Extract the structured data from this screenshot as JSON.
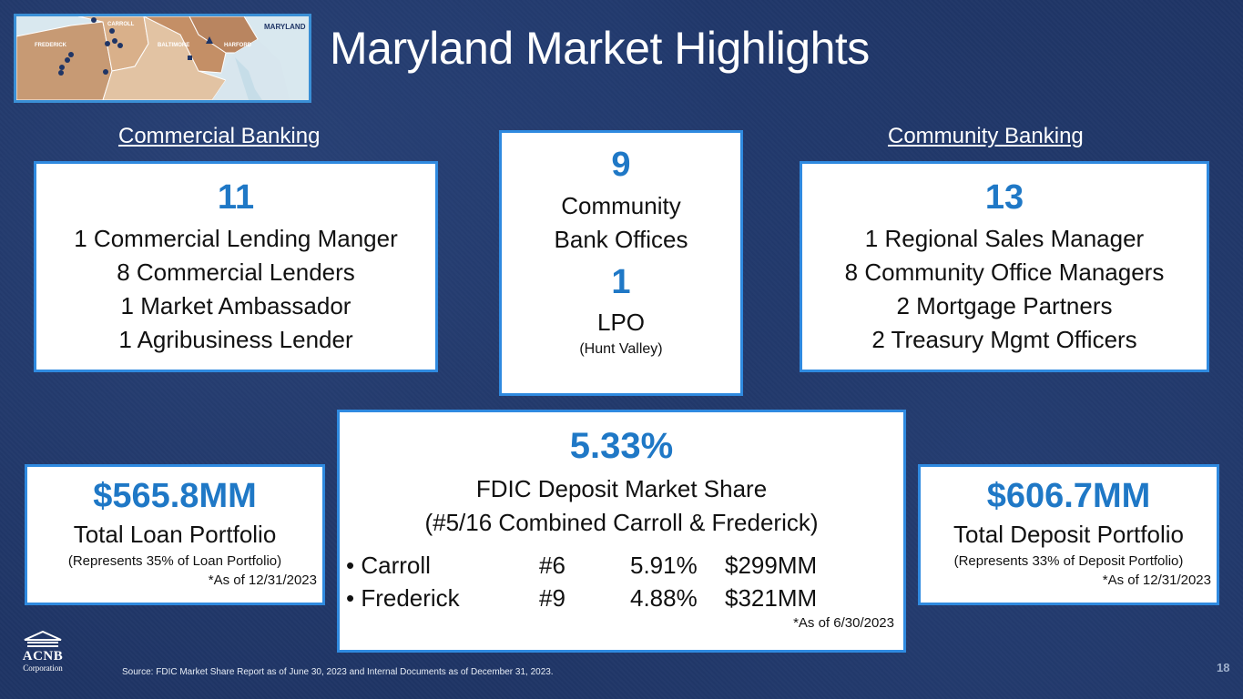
{
  "title": "Maryland Market Highlights",
  "map": {
    "labels": {
      "state": "MARYLAND",
      "carroll": "CARROLL",
      "frederick": "FREDERICK",
      "baltimore": "BALTIMORE",
      "harford": "HARFORD"
    }
  },
  "commercial": {
    "heading": "Commercial Banking",
    "count": "11",
    "lines": [
      "1 Commercial Lending Manger",
      "8 Commercial Lenders",
      "1 Market Ambassador",
      "1 Agribusiness Lender"
    ]
  },
  "offices": {
    "count1": "9",
    "label1a": "Community",
    "label1b": "Bank Offices",
    "count2": "1",
    "label2": "LPO",
    "sub2": "(Hunt Valley)"
  },
  "community": {
    "heading": "Community Banking",
    "count": "13",
    "lines": [
      "1 Regional Sales Manager",
      "8 Community Office Managers",
      "2 Mortgage Partners",
      "2 Treasury Mgmt Officers"
    ]
  },
  "loan": {
    "amount": "$565.8MM",
    "label": "Total Loan Portfolio",
    "note": "(Represents 35% of Loan Portfolio)",
    "asof": "*As of 12/31/2023"
  },
  "deposit_share": {
    "pct": "5.33%",
    "label": "FDIC Deposit Market Share",
    "sub": "(#5/16 Combined Carroll & Frederick)",
    "rows": [
      {
        "county": "• Carroll",
        "rank": "#6",
        "share": "5.91%",
        "amount": "$299MM"
      },
      {
        "county": "• Frederick",
        "rank": "#9",
        "share": "4.88%",
        "amount": "$321MM"
      }
    ],
    "asof": "*As of 6/30/2023"
  },
  "deposit": {
    "amount": "$606.7MM",
    "label": "Total Deposit Portfolio",
    "note": "(Represents 33% of Deposit Portfolio)",
    "asof": "*As of 12/31/2023"
  },
  "footer": {
    "source": "Source: FDIC Market Share Report as of June 30, 2023 and Internal Documents as of December 31, 2023.",
    "page": "18",
    "logo_name": "ACNB",
    "logo_sub": "Corporation"
  },
  "colors": {
    "accent": "#1f78c6",
    "border": "#2f8ae0",
    "background": "#1f3566"
  }
}
